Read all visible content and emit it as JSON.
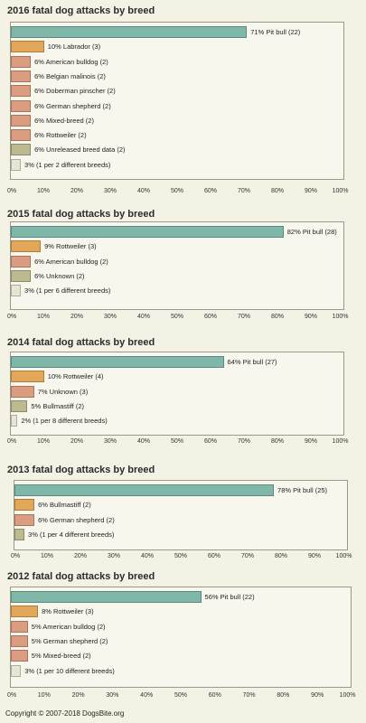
{
  "colors": {
    "pitbull": "#7fb7a8",
    "rottweiler": "#e3a75a",
    "other": "#dc9c80",
    "unknown": "#bdb991",
    "multi": "#e8e6d2"
  },
  "x_ticks": [
    "0%",
    "10%",
    "20%",
    "30%",
    "40%",
    "50%",
    "60%",
    "70%",
    "80%",
    "90%",
    "100%"
  ],
  "copyright": "Copyright © 2007-2018 DogsBite.org",
  "chart_data": [
    {
      "type": "bar",
      "title": "2016 fatal dog attacks by breed",
      "xlim": [
        0,
        100
      ],
      "bars": [
        {
          "label": "71% Pit bull (22)",
          "value": 71,
          "color": "pitbull"
        },
        {
          "label": "10% Labrador (3)",
          "value": 10,
          "color": "rottweiler"
        },
        {
          "label": "6% American bulldog (2)",
          "value": 6,
          "color": "other"
        },
        {
          "label": "6% Belgian malinois (2)",
          "value": 6,
          "color": "other"
        },
        {
          "label": "6% Doberman pinscher (2)",
          "value": 6,
          "color": "other"
        },
        {
          "label": "6% German shepherd (2)",
          "value": 6,
          "color": "other"
        },
        {
          "label": "6% Mixed-breed (2)",
          "value": 6,
          "color": "other"
        },
        {
          "label": "6% Rottweiler (2)",
          "value": 6,
          "color": "other"
        },
        {
          "label": "6% Unreleased breed data (2)",
          "value": 6,
          "color": "unknown"
        },
        {
          "label": "3% (1 per 2 different breeds)",
          "value": 3,
          "color": "multi"
        }
      ]
    },
    {
      "type": "bar",
      "title": "2015 fatal dog attacks by breed",
      "xlim": [
        0,
        100
      ],
      "bars": [
        {
          "label": "82% Pit bull (28)",
          "value": 82,
          "color": "pitbull"
        },
        {
          "label": "9% Rottweiler (3)",
          "value": 9,
          "color": "rottweiler"
        },
        {
          "label": "6% American bulldog (2)",
          "value": 6,
          "color": "other"
        },
        {
          "label": "6% Unknown (2)",
          "value": 6,
          "color": "unknown"
        },
        {
          "label": "3% (1 per 6 different breeds)",
          "value": 3,
          "color": "multi"
        }
      ]
    },
    {
      "type": "bar",
      "title": "2014 fatal dog attacks by breed",
      "xlim": [
        0,
        100
      ],
      "bars": [
        {
          "label": "64% Pit bull (27)",
          "value": 64,
          "color": "pitbull"
        },
        {
          "label": "10% Rottweiler (4)",
          "value": 10,
          "color": "rottweiler"
        },
        {
          "label": "7% Unknown (3)",
          "value": 7,
          "color": "other"
        },
        {
          "label": "5% Bullmastiff (2)",
          "value": 5,
          "color": "unknown"
        },
        {
          "label": "2% (1 per 8 different breeds)",
          "value": 2,
          "color": "multi"
        }
      ]
    },
    {
      "type": "bar",
      "title": "2013 fatal dog attacks by breed",
      "xlim": [
        0,
        100
      ],
      "bars": [
        {
          "label": "78% Pit bull (25)",
          "value": 78,
          "color": "pitbull"
        },
        {
          "label": "6% Bullmastiff (2)",
          "value": 6,
          "color": "rottweiler"
        },
        {
          "label": "6% German shepherd (2)",
          "value": 6,
          "color": "other"
        },
        {
          "label": "3% (1 per 4 different breeds)",
          "value": 3,
          "color": "unknown"
        }
      ]
    },
    {
      "type": "bar",
      "title": "2012 fatal dog attacks by breed",
      "xlim": [
        0,
        100
      ],
      "bars": [
        {
          "label": "56% Pit bull (22)",
          "value": 56,
          "color": "pitbull"
        },
        {
          "label": "8% Rottweiler (3)",
          "value": 8,
          "color": "rottweiler"
        },
        {
          "label": "5% American bulldog (2)",
          "value": 5,
          "color": "other"
        },
        {
          "label": "5% German shepherd (2)",
          "value": 5,
          "color": "other"
        },
        {
          "label": "5% Mixed-breed (2)",
          "value": 5,
          "color": "other"
        },
        {
          "label": "3% (1 per 10 different breeds)",
          "value": 3,
          "color": "multi"
        }
      ]
    }
  ]
}
